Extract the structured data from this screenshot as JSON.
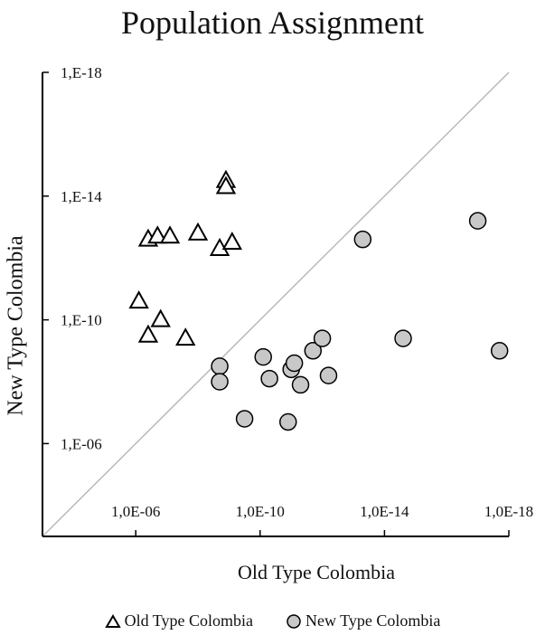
{
  "chart_data": {
    "type": "scatter",
    "title": "Population Assignment",
    "xlabel": "Old Type Colombia",
    "ylabel": "New Type Colombia",
    "x_scale": "log (-log10 of likelihood)",
    "y_scale": "log (-log10 of likelihood)",
    "x_tick_labels": [
      "1,0E-06",
      "1,0E-10",
      "1,0E-14",
      "1,0E-18"
    ],
    "x_ticks": [
      6,
      10,
      14,
      18
    ],
    "y_tick_labels": [
      "1,E-06",
      "1,E-10",
      "1,E-14",
      "1,E-18"
    ],
    "y_ticks": [
      6,
      10,
      14,
      18
    ],
    "xlim": [
      3,
      18
    ],
    "ylim": [
      3,
      18
    ],
    "diagonal": true,
    "grid": false,
    "legend_position": "bottom",
    "series": [
      {
        "name": "Old Type Colombia",
        "marker": "triangle",
        "color": "#ffffff",
        "edge": "#000000",
        "points": [
          {
            "x": 6.1,
            "y": 10.6
          },
          {
            "x": 6.4,
            "y": 9.5
          },
          {
            "x": 6.4,
            "y": 12.6
          },
          {
            "x": 6.7,
            "y": 12.7
          },
          {
            "x": 6.8,
            "y": 10.0
          },
          {
            "x": 7.1,
            "y": 12.7
          },
          {
            "x": 7.6,
            "y": 9.4
          },
          {
            "x": 8.0,
            "y": 12.8
          },
          {
            "x": 8.7,
            "y": 12.3
          },
          {
            "x": 8.9,
            "y": 14.5
          },
          {
            "x": 8.9,
            "y": 14.3
          },
          {
            "x": 9.1,
            "y": 12.5
          }
        ]
      },
      {
        "name": "New Type Colombia",
        "marker": "circle",
        "color": "#c8c8c8",
        "edge": "#000000",
        "points": [
          {
            "x": 8.7,
            "y": 8.5
          },
          {
            "x": 8.7,
            "y": 8.0
          },
          {
            "x": 9.5,
            "y": 6.8
          },
          {
            "x": 10.1,
            "y": 8.8
          },
          {
            "x": 10.3,
            "y": 8.1
          },
          {
            "x": 10.9,
            "y": 6.7
          },
          {
            "x": 11.0,
            "y": 8.4
          },
          {
            "x": 11.1,
            "y": 8.6
          },
          {
            "x": 11.3,
            "y": 7.9
          },
          {
            "x": 11.7,
            "y": 9.0
          },
          {
            "x": 12.0,
            "y": 9.4
          },
          {
            "x": 12.2,
            "y": 8.2
          },
          {
            "x": 13.3,
            "y": 12.6
          },
          {
            "x": 14.6,
            "y": 9.4
          },
          {
            "x": 17.0,
            "y": 13.2
          },
          {
            "x": 17.7,
            "y": 9.0
          }
        ]
      }
    ]
  }
}
